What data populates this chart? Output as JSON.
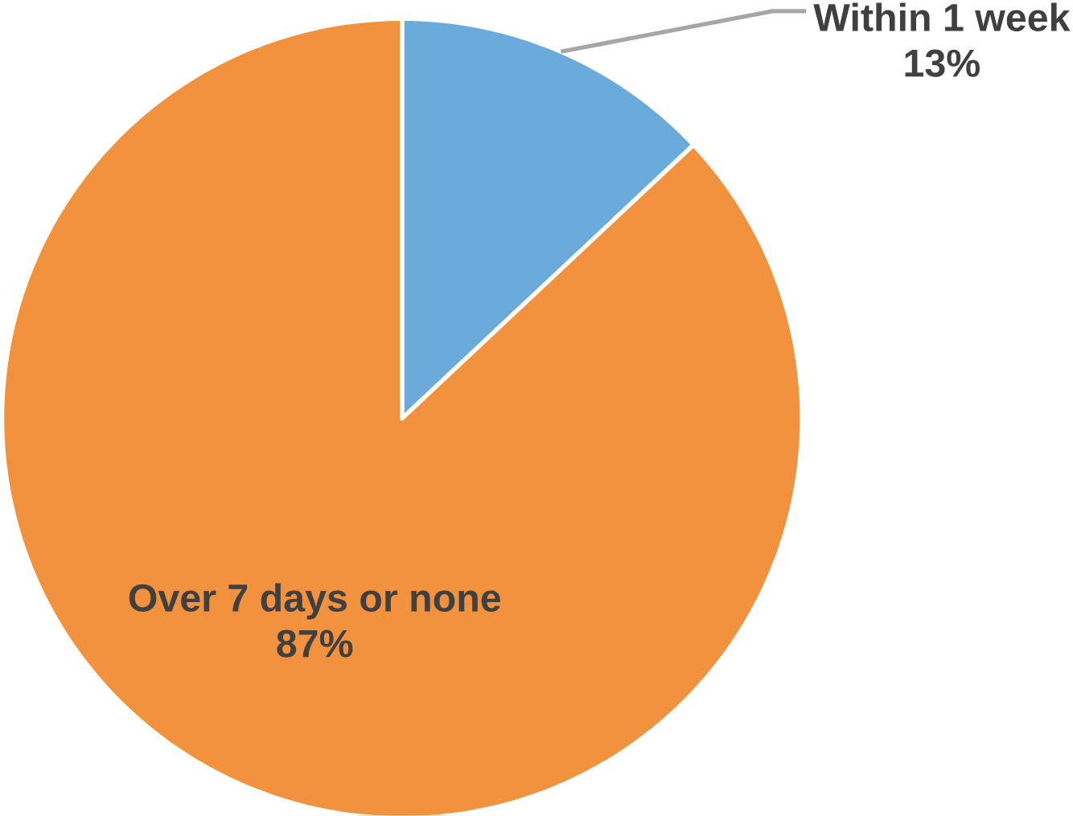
{
  "chart_data": {
    "type": "pie",
    "categories": [
      "Within 1 week",
      "Over 7 days or none"
    ],
    "values": [
      13,
      87
    ],
    "colors": [
      "#6aabdc",
      "#f2913e"
    ],
    "value_labels": [
      "13%",
      "87%"
    ]
  }
}
